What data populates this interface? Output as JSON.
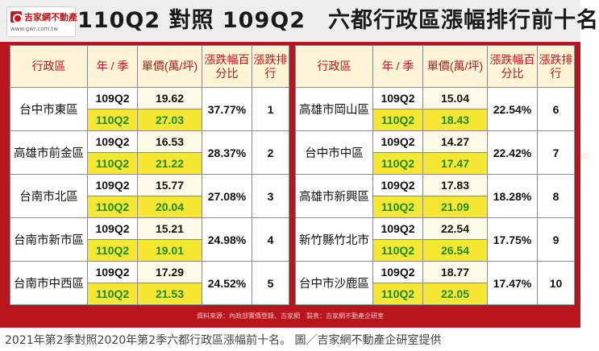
{
  "logo": {
    "name": "吉家網不動產",
    "url": "www.gwr.com.tw"
  },
  "title": "110Q2 對照 109Q2　六都行政區漲幅排行前十名",
  "headers": {
    "district": "行政區",
    "period": "年 / 季",
    "price": "單價(萬/坪)",
    "pct": "漲跌幅百分比",
    "rank": "漲跌排行"
  },
  "left_rows": [
    {
      "district": "台中市東區",
      "p1": "109Q2",
      "v1": "19.62",
      "p2": "110Q2",
      "v2": "27.03",
      "pct": "37.77%",
      "rank": "1"
    },
    {
      "district": "高雄市前金區",
      "p1": "109Q2",
      "v1": "16.53",
      "p2": "110Q2",
      "v2": "21.22",
      "pct": "28.37%",
      "rank": "2"
    },
    {
      "district": "台南市北區",
      "p1": "109Q2",
      "v1": "15.77",
      "p2": "110Q2",
      "v2": "20.04",
      "pct": "27.08%",
      "rank": "3"
    },
    {
      "district": "台南市新市區",
      "p1": "109Q2",
      "v1": "15.21",
      "p2": "110Q2",
      "v2": "19.01",
      "pct": "24.98%",
      "rank": "4"
    },
    {
      "district": "台南市中西區",
      "p1": "109Q2",
      "v1": "17.29",
      "p2": "110Q2",
      "v2": "21.53",
      "pct": "24.52%",
      "rank": "5"
    }
  ],
  "right_rows": [
    {
      "district": "高雄市岡山區",
      "p1": "109Q2",
      "v1": "15.04",
      "p2": "110Q2",
      "v2": "18.43",
      "pct": "22.54%",
      "rank": "6"
    },
    {
      "district": "台中市中區",
      "p1": "109Q2",
      "v1": "14.27",
      "p2": "110Q2",
      "v2": "17.47",
      "pct": "22.42%",
      "rank": "7"
    },
    {
      "district": "高雄市新興區",
      "p1": "109Q2",
      "v1": "17.83",
      "p2": "110Q2",
      "v2": "21.09",
      "pct": "18.28%",
      "rank": "8"
    },
    {
      "district": "新竹縣竹北市",
      "p1": "109Q2",
      "v1": "22.54",
      "p2": "110Q2",
      "v2": "26.54",
      "pct": "17.75%",
      "rank": "9"
    },
    {
      "district": "台中市沙鹿區",
      "p1": "109Q2",
      "v1": "18.77",
      "p2": "110Q2",
      "v2": "22.05",
      "pct": "17.47%",
      "rank": "10"
    }
  ],
  "source": "資料來源：內政部實價登錄、吉家網　製表：吉家網不動產企研室",
  "watermark": "吉家網不動產",
  "caption": "2021年第2季對照2020年第2季六都行政區漲幅前十名。 圖／吉家網不動產企研室提供",
  "colors": {
    "brand_red": "#b8161c",
    "highlight_yellow": "#f6e832",
    "green_text": "#1d8a2a"
  }
}
